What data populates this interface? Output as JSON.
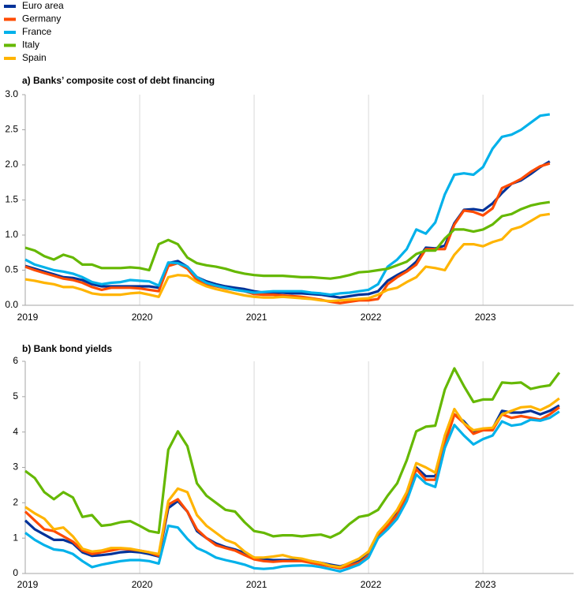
{
  "chart_data": [
    {
      "type": "line",
      "title": "a) Banks’ composite cost of debt financing",
      "categories": [
        "2019",
        null,
        null,
        null,
        null,
        null,
        null,
        null,
        null,
        null,
        null,
        null,
        "2020",
        null,
        null,
        null,
        null,
        null,
        null,
        null,
        null,
        null,
        null,
        null,
        "2021",
        null,
        null,
        null,
        null,
        null,
        null,
        null,
        null,
        null,
        null,
        null,
        "2022",
        null,
        null,
        null,
        null,
        null,
        null,
        null,
        null,
        null,
        null,
        null,
        "2023",
        null,
        null,
        null,
        null,
        null,
        null,
        null
      ],
      "ylim": [
        0,
        3
      ],
      "yticks": [
        {
          "value": 0,
          "label": "0.0"
        },
        0.5,
        {
          "value": 1,
          "label": "1.0"
        },
        1.5,
        {
          "value": 2,
          "label": "2.0"
        },
        2.5,
        {
          "value": 3,
          "label": "3.0"
        }
      ],
      "grid": true,
      "series": [
        {
          "name": "Euro area",
          "color": "#003299",
          "values": [
            0.56,
            0.52,
            0.48,
            0.44,
            0.4,
            0.39,
            0.36,
            0.3,
            0.27,
            0.27,
            0.27,
            0.27,
            0.27,
            0.27,
            0.25,
            0.6,
            0.63,
            0.55,
            0.4,
            0.34,
            0.3,
            0.27,
            0.25,
            0.23,
            0.2,
            0.18,
            0.18,
            0.18,
            0.17,
            0.17,
            0.16,
            0.15,
            0.13,
            0.11,
            0.13,
            0.15,
            0.16,
            0.2,
            0.35,
            0.43,
            0.5,
            0.62,
            0.82,
            0.81,
            0.85,
            1.17,
            1.36,
            1.37,
            1.35,
            1.45,
            1.6,
            1.73,
            1.78,
            1.87,
            1.97,
            2.05
          ]
        },
        {
          "name": "Germany",
          "color": "#ff4b00",
          "values": [
            0.55,
            0.5,
            0.46,
            0.42,
            0.38,
            0.36,
            0.32,
            0.26,
            0.22,
            0.25,
            0.25,
            0.25,
            0.24,
            0.22,
            0.2,
            0.56,
            0.6,
            0.52,
            0.36,
            0.3,
            0.27,
            0.24,
            0.22,
            0.2,
            0.16,
            0.15,
            0.15,
            0.14,
            0.13,
            0.12,
            0.1,
            0.08,
            0.05,
            0.03,
            0.05,
            0.07,
            0.07,
            0.09,
            0.3,
            0.4,
            0.48,
            0.58,
            0.8,
            0.8,
            0.8,
            1.15,
            1.35,
            1.33,
            1.28,
            1.38,
            1.67,
            1.73,
            1.8,
            1.9,
            1.98,
            2.02
          ]
        },
        {
          "name": "France",
          "color": "#00b1ea",
          "values": [
            0.65,
            0.58,
            0.54,
            0.5,
            0.48,
            0.45,
            0.4,
            0.33,
            0.3,
            0.32,
            0.33,
            0.36,
            0.35,
            0.34,
            0.28,
            0.61,
            0.6,
            0.55,
            0.4,
            0.32,
            0.28,
            0.25,
            0.22,
            0.2,
            0.18,
            0.19,
            0.2,
            0.2,
            0.2,
            0.2,
            0.18,
            0.17,
            0.15,
            0.17,
            0.18,
            0.2,
            0.22,
            0.3,
            0.55,
            0.65,
            0.8,
            1.08,
            1.02,
            1.18,
            1.58,
            1.86,
            1.88,
            1.86,
            1.97,
            2.23,
            2.4,
            2.43,
            2.5,
            2.6,
            2.7,
            2.72
          ]
        },
        {
          "name": "Italy",
          "color": "#65b800",
          "values": [
            0.82,
            0.78,
            0.7,
            0.65,
            0.72,
            0.68,
            0.58,
            0.58,
            0.53,
            0.53,
            0.53,
            0.54,
            0.53,
            0.5,
            0.87,
            0.93,
            0.87,
            0.68,
            0.6,
            0.57,
            0.55,
            0.52,
            0.48,
            0.45,
            0.43,
            0.42,
            0.42,
            0.42,
            0.41,
            0.4,
            0.4,
            0.39,
            0.38,
            0.4,
            0.43,
            0.47,
            0.48,
            0.5,
            0.52,
            0.57,
            0.62,
            0.73,
            0.78,
            0.78,
            0.95,
            1.08,
            1.08,
            1.05,
            1.08,
            1.15,
            1.27,
            1.3,
            1.37,
            1.42,
            1.45,
            1.47
          ]
        },
        {
          "name": "Spain",
          "color": "#ffb400",
          "values": [
            0.37,
            0.35,
            0.32,
            0.3,
            0.26,
            0.26,
            0.22,
            0.17,
            0.15,
            0.15,
            0.15,
            0.17,
            0.18,
            0.15,
            0.12,
            0.4,
            0.43,
            0.42,
            0.33,
            0.27,
            0.23,
            0.2,
            0.17,
            0.14,
            0.12,
            0.11,
            0.11,
            0.12,
            0.11,
            0.1,
            0.09,
            0.07,
            0.06,
            0.07,
            0.08,
            0.09,
            0.1,
            0.15,
            0.22,
            0.25,
            0.33,
            0.4,
            0.55,
            0.53,
            0.5,
            0.72,
            0.87,
            0.87,
            0.84,
            0.9,
            0.94,
            1.08,
            1.12,
            1.2,
            1.28,
            1.3
          ]
        }
      ]
    },
    {
      "type": "line",
      "title": "b) Bank bond yields",
      "categories": [
        "2019",
        null,
        null,
        null,
        null,
        null,
        null,
        null,
        null,
        null,
        null,
        null,
        "2020",
        null,
        null,
        null,
        null,
        null,
        null,
        null,
        null,
        null,
        null,
        null,
        "2021",
        null,
        null,
        null,
        null,
        null,
        null,
        null,
        null,
        null,
        null,
        null,
        "2022",
        null,
        null,
        null,
        null,
        null,
        null,
        null,
        null,
        null,
        null,
        null,
        "2023",
        null,
        null,
        null,
        null,
        null,
        null,
        null,
        null
      ],
      "ylim": [
        0,
        6
      ],
      "yticks": [
        0,
        1,
        2,
        3,
        4,
        5,
        6
      ],
      "grid": true,
      "series": [
        {
          "color": "#003299",
          "values": [
            1.5,
            1.25,
            1.1,
            0.95,
            0.95,
            0.85,
            0.6,
            0.5,
            0.52,
            0.55,
            0.6,
            0.62,
            0.6,
            0.55,
            0.48,
            1.85,
            2.05,
            1.75,
            1.2,
            1.0,
            0.85,
            0.75,
            0.68,
            0.58,
            0.45,
            0.4,
            0.38,
            0.38,
            0.38,
            0.38,
            0.35,
            0.3,
            0.25,
            0.2,
            0.28,
            0.38,
            0.6,
            1.1,
            1.45,
            1.75,
            2.2,
            3.0,
            2.75,
            2.75,
            3.7,
            4.5,
            4.3,
            4.0,
            4.05,
            4.1,
            4.6,
            4.55,
            4.55,
            4.6,
            4.5,
            4.6,
            4.75
          ]
        },
        {
          "color": "#ff4b00",
          "values": [
            1.75,
            1.5,
            1.25,
            1.2,
            1.05,
            0.9,
            0.65,
            0.55,
            0.6,
            0.65,
            0.7,
            0.68,
            0.65,
            0.6,
            0.5,
            1.95,
            2.1,
            1.75,
            1.25,
            1.0,
            0.8,
            0.72,
            0.65,
            0.52,
            0.4,
            0.35,
            0.33,
            0.35,
            0.35,
            0.35,
            0.3,
            0.25,
            0.2,
            0.15,
            0.22,
            0.3,
            0.5,
            1.05,
            1.35,
            1.65,
            2.2,
            2.95,
            2.65,
            2.65,
            3.65,
            4.5,
            4.25,
            3.95,
            4.05,
            4.05,
            4.5,
            4.4,
            4.45,
            4.4,
            4.35,
            4.5,
            4.7
          ]
        },
        {
          "color": "#00b1ea",
          "values": [
            1.15,
            0.95,
            0.8,
            0.68,
            0.65,
            0.55,
            0.35,
            0.18,
            0.25,
            0.3,
            0.35,
            0.38,
            0.38,
            0.35,
            0.28,
            1.35,
            1.3,
            0.98,
            0.72,
            0.6,
            0.45,
            0.38,
            0.32,
            0.25,
            0.15,
            0.13,
            0.15,
            0.2,
            0.22,
            0.23,
            0.22,
            0.18,
            0.12,
            0.06,
            0.15,
            0.25,
            0.45,
            1.0,
            1.25,
            1.55,
            2.05,
            2.8,
            2.55,
            2.45,
            3.55,
            4.2,
            3.9,
            3.65,
            3.8,
            3.9,
            4.3,
            4.18,
            4.22,
            4.35,
            4.32,
            4.4,
            4.58
          ]
        },
        {
          "color": "#65b800",
          "values": [
            2.9,
            2.7,
            2.3,
            2.1,
            2.3,
            2.15,
            1.6,
            1.65,
            1.35,
            1.38,
            1.45,
            1.48,
            1.35,
            1.2,
            1.15,
            3.5,
            4.02,
            3.6,
            2.55,
            2.2,
            2.0,
            1.8,
            1.75,
            1.45,
            1.2,
            1.15,
            1.05,
            1.08,
            1.08,
            1.05,
            1.08,
            1.1,
            1.02,
            1.15,
            1.4,
            1.6,
            1.65,
            1.8,
            2.2,
            2.55,
            3.2,
            4.02,
            4.15,
            4.18,
            5.2,
            5.8,
            5.3,
            4.85,
            4.92,
            4.92,
            5.4,
            5.38,
            5.4,
            5.22,
            5.28,
            5.32,
            5.68
          ]
        },
        {
          "color": "#ffb400",
          "values": [
            1.88,
            1.7,
            1.55,
            1.25,
            1.3,
            1.05,
            0.7,
            0.62,
            0.65,
            0.72,
            0.72,
            0.7,
            0.65,
            0.6,
            0.55,
            2.05,
            2.4,
            2.3,
            1.65,
            1.35,
            1.15,
            0.95,
            0.85,
            0.62,
            0.45,
            0.45,
            0.48,
            0.52,
            0.45,
            0.42,
            0.35,
            0.3,
            0.22,
            0.18,
            0.3,
            0.42,
            0.62,
            1.15,
            1.45,
            1.8,
            2.3,
            3.12,
            3.0,
            2.85,
            3.9,
            4.65,
            4.25,
            4.05,
            4.1,
            4.12,
            4.5,
            4.6,
            4.7,
            4.72,
            4.62,
            4.75,
            4.95
          ]
        }
      ]
    }
  ]
}
